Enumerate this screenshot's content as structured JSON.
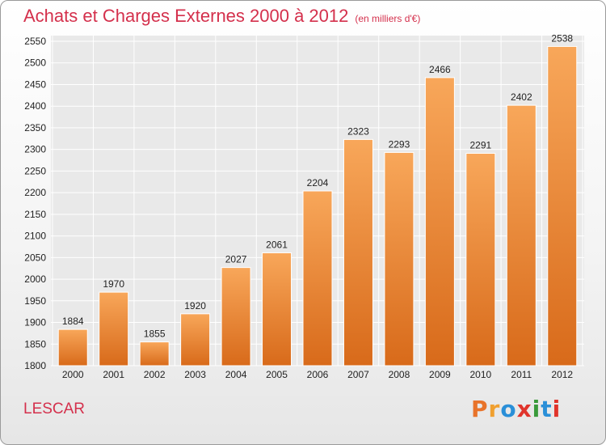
{
  "title": "Achats et Charges Externes 2000 à 2012",
  "subtitle": "(en milliers d'€)",
  "commune": "LESCAR",
  "logo": {
    "text": "Proxiti",
    "colors": [
      "#e8732a",
      "#f0a030",
      "#2a8fd8",
      "#e0342c",
      "#3a9a3a",
      "#2a8fd8",
      "#e0342c"
    ]
  },
  "colors": {
    "title": "#d4304c",
    "bar_light": "#f8a75a",
    "bar_dark": "#d86a1a",
    "grid": "#ffffff"
  },
  "chart_data": {
    "type": "bar",
    "categories": [
      "2000",
      "2001",
      "2002",
      "2003",
      "2004",
      "2005",
      "2006",
      "2007",
      "2008",
      "2009",
      "2010",
      "2011",
      "2012"
    ],
    "values": [
      1884,
      1970,
      1855,
      1920,
      2027,
      2061,
      2204,
      2323,
      2293,
      2466,
      2291,
      2402,
      2538
    ],
    "ylim": [
      1800,
      2550
    ],
    "yticks": [
      1800,
      1850,
      1900,
      1950,
      2000,
      2050,
      2100,
      2150,
      2200,
      2250,
      2300,
      2350,
      2400,
      2450,
      2500,
      2550
    ],
    "grid": true,
    "legend": "none"
  }
}
